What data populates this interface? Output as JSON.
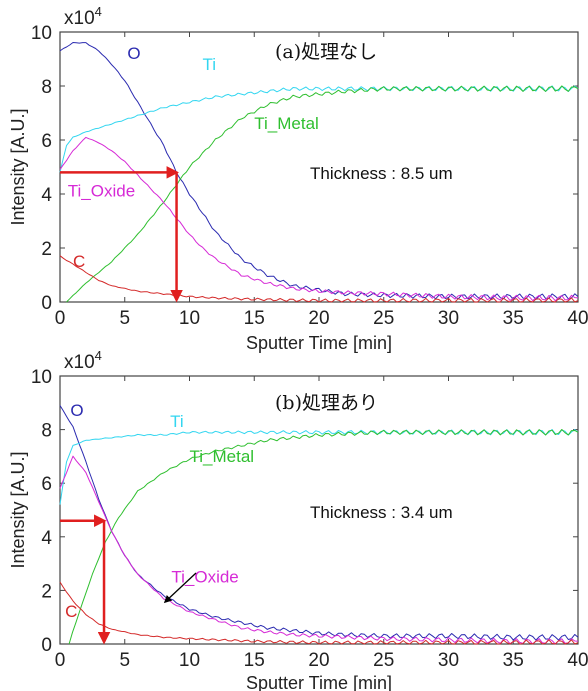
{
  "chart_data": [
    {
      "type": "line",
      "title": "(a)処理なし",
      "xlabel": "Sputter Time [min]",
      "ylabel": "Intensity [A.U.]",
      "y_multiplier_label": "x10",
      "y_multiplier_exp": "4",
      "xlim": [
        0,
        40
      ],
      "ylim": [
        0,
        10
      ],
      "xticks": [
        "0",
        "5",
        "10",
        "15",
        "20",
        "25",
        "30",
        "35",
        "40"
      ],
      "yticks": [
        "0",
        "2",
        "4",
        "6",
        "8",
        "10"
      ],
      "annotation": "Thickness : 8.5 um",
      "marker": {
        "x": 9,
        "y": 4.8,
        "color": "#e01f1f"
      },
      "series": [
        {
          "name": "O",
          "color": "#2b2bb0",
          "label_at": [
            5.2,
            9.0
          ],
          "x": [
            0,
            1,
            2,
            3,
            4,
            5,
            6,
            7,
            8,
            9,
            10,
            12,
            14,
            16,
            18,
            20,
            22,
            25,
            30,
            35,
            40
          ],
          "values": [
            9.3,
            9.6,
            9.6,
            9.3,
            8.8,
            8.2,
            7.4,
            6.6,
            5.8,
            4.8,
            4.0,
            2.6,
            1.6,
            1.0,
            0.6,
            0.45,
            0.3,
            0.25,
            0.2,
            0.2,
            0.2
          ]
        },
        {
          "name": "Ti",
          "color": "#33d6f0",
          "label_at": [
            11.0,
            8.6
          ],
          "x": [
            0,
            0.5,
            1,
            2,
            4,
            6,
            8,
            10,
            12,
            14,
            16,
            18,
            20,
            22,
            25,
            30,
            35,
            40
          ],
          "values": [
            4.8,
            5.8,
            6.1,
            6.3,
            6.6,
            6.9,
            7.2,
            7.4,
            7.6,
            7.7,
            7.8,
            7.9,
            7.9,
            7.9,
            7.9,
            7.9,
            7.9,
            7.9
          ]
        },
        {
          "name": "Ti_Metal",
          "color": "#2fbf2f",
          "label_at": [
            15.0,
            6.4
          ],
          "x": [
            0.5,
            2,
            4,
            6,
            8,
            10,
            12,
            14,
            16,
            18,
            20,
            22,
            25,
            28,
            30,
            35,
            40
          ],
          "values": [
            0,
            0.7,
            1.5,
            2.5,
            3.7,
            5.0,
            6.0,
            6.8,
            7.3,
            7.6,
            7.7,
            7.8,
            7.9,
            7.9,
            7.9,
            7.9,
            7.9
          ]
        },
        {
          "name": "Ti_Oxide",
          "color": "#d62ad6",
          "label_at": [
            0.6,
            3.9
          ],
          "x": [
            0,
            1,
            2,
            3,
            4,
            5,
            6,
            7,
            8,
            9,
            10,
            11,
            12,
            14,
            16,
            18,
            20,
            22,
            25,
            30,
            35,
            40
          ],
          "values": [
            4.9,
            5.6,
            6.1,
            5.9,
            5.6,
            5.2,
            4.7,
            4.2,
            3.7,
            3.1,
            2.5,
            2.0,
            1.6,
            1.0,
            0.7,
            0.5,
            0.4,
            0.35,
            0.3,
            0.2,
            0.15,
            0.15
          ]
        },
        {
          "name": "C",
          "color": "#d42a2a",
          "label_at": [
            1.0,
            1.3
          ],
          "x": [
            0,
            1,
            2,
            3,
            4,
            6,
            8,
            10,
            12,
            15,
            20,
            25,
            30,
            35,
            40
          ],
          "values": [
            1.7,
            1.4,
            1.1,
            0.8,
            0.6,
            0.4,
            0.3,
            0.2,
            0.15,
            0.1,
            0.05,
            0.05,
            0.05,
            0.05,
            0.05
          ]
        }
      ]
    },
    {
      "type": "line",
      "title": "(b)処理あり",
      "xlabel": "Sputter Time [min]",
      "ylabel": "Intensity [A.U.]",
      "y_multiplier_label": "x10",
      "y_multiplier_exp": "4",
      "xlim": [
        0,
        40
      ],
      "ylim": [
        0,
        10
      ],
      "xticks": [
        "0",
        "5",
        "10",
        "15",
        "20",
        "25",
        "30",
        "35",
        "40"
      ],
      "yticks": [
        "0",
        "2",
        "4",
        "6",
        "8",
        "10"
      ],
      "annotation": "Thickness : 3.4 um",
      "marker": {
        "x": 3.4,
        "y": 4.6,
        "color": "#e01f1f"
      },
      "series": [
        {
          "name": "O",
          "color": "#2b2bb0",
          "label_at": [
            0.8,
            8.5
          ],
          "x": [
            0,
            1,
            2,
            3,
            4,
            5,
            6,
            8,
            10,
            12,
            14,
            16,
            18,
            20,
            22,
            25,
            30,
            35,
            40
          ],
          "values": [
            8.9,
            8.1,
            6.8,
            5.4,
            4.2,
            3.3,
            2.6,
            1.8,
            1.3,
            1.0,
            0.8,
            0.6,
            0.5,
            0.4,
            0.35,
            0.3,
            0.3,
            0.25,
            0.25
          ]
        },
        {
          "name": "Ti",
          "color": "#33d6f0",
          "label_at": [
            8.5,
            8.1
          ],
          "x": [
            0,
            0.5,
            1,
            2,
            4,
            6,
            8,
            10,
            14,
            20,
            25,
            30,
            35,
            40
          ],
          "values": [
            5.2,
            6.8,
            7.4,
            7.6,
            7.7,
            7.8,
            7.8,
            7.9,
            7.9,
            7.9,
            7.9,
            7.9,
            7.9,
            7.9
          ]
        },
        {
          "name": "Ti_Metal",
          "color": "#2fbf2f",
          "label_at": [
            10.0,
            6.8
          ],
          "x": [
            0.7,
            1.5,
            2.5,
            3.5,
            4.5,
            6,
            8,
            10,
            12,
            14,
            16,
            18,
            20,
            25,
            30,
            35,
            40
          ],
          "values": [
            0,
            1.2,
            2.6,
            3.8,
            4.7,
            5.7,
            6.4,
            6.9,
            7.2,
            7.4,
            7.6,
            7.7,
            7.8,
            7.9,
            7.9,
            7.9,
            7.9
          ]
        },
        {
          "name": "Ti_Oxide",
          "color": "#d62ad6",
          "label_at": [
            8.6,
            2.3
          ],
          "x": [
            0,
            1,
            2,
            3,
            4,
            5,
            6,
            8,
            10,
            12,
            14,
            16,
            18,
            20,
            25,
            30,
            35,
            40
          ],
          "values": [
            5.8,
            7.0,
            6.4,
            5.3,
            4.2,
            3.3,
            2.6,
            1.7,
            1.2,
            0.9,
            0.6,
            0.45,
            0.35,
            0.3,
            0.2,
            0.15,
            0.1,
            0.1
          ]
        },
        {
          "name": "C",
          "color": "#d42a2a",
          "label_at": [
            0.4,
            1.0
          ],
          "x": [
            0,
            1,
            2,
            3,
            4,
            6,
            8,
            10,
            15,
            20,
            25,
            30,
            35,
            40
          ],
          "values": [
            2.3,
            1.6,
            1.1,
            0.75,
            0.55,
            0.35,
            0.25,
            0.2,
            0.1,
            0.05,
            0.05,
            0.05,
            0.05,
            0.05
          ]
        }
      ]
    }
  ]
}
